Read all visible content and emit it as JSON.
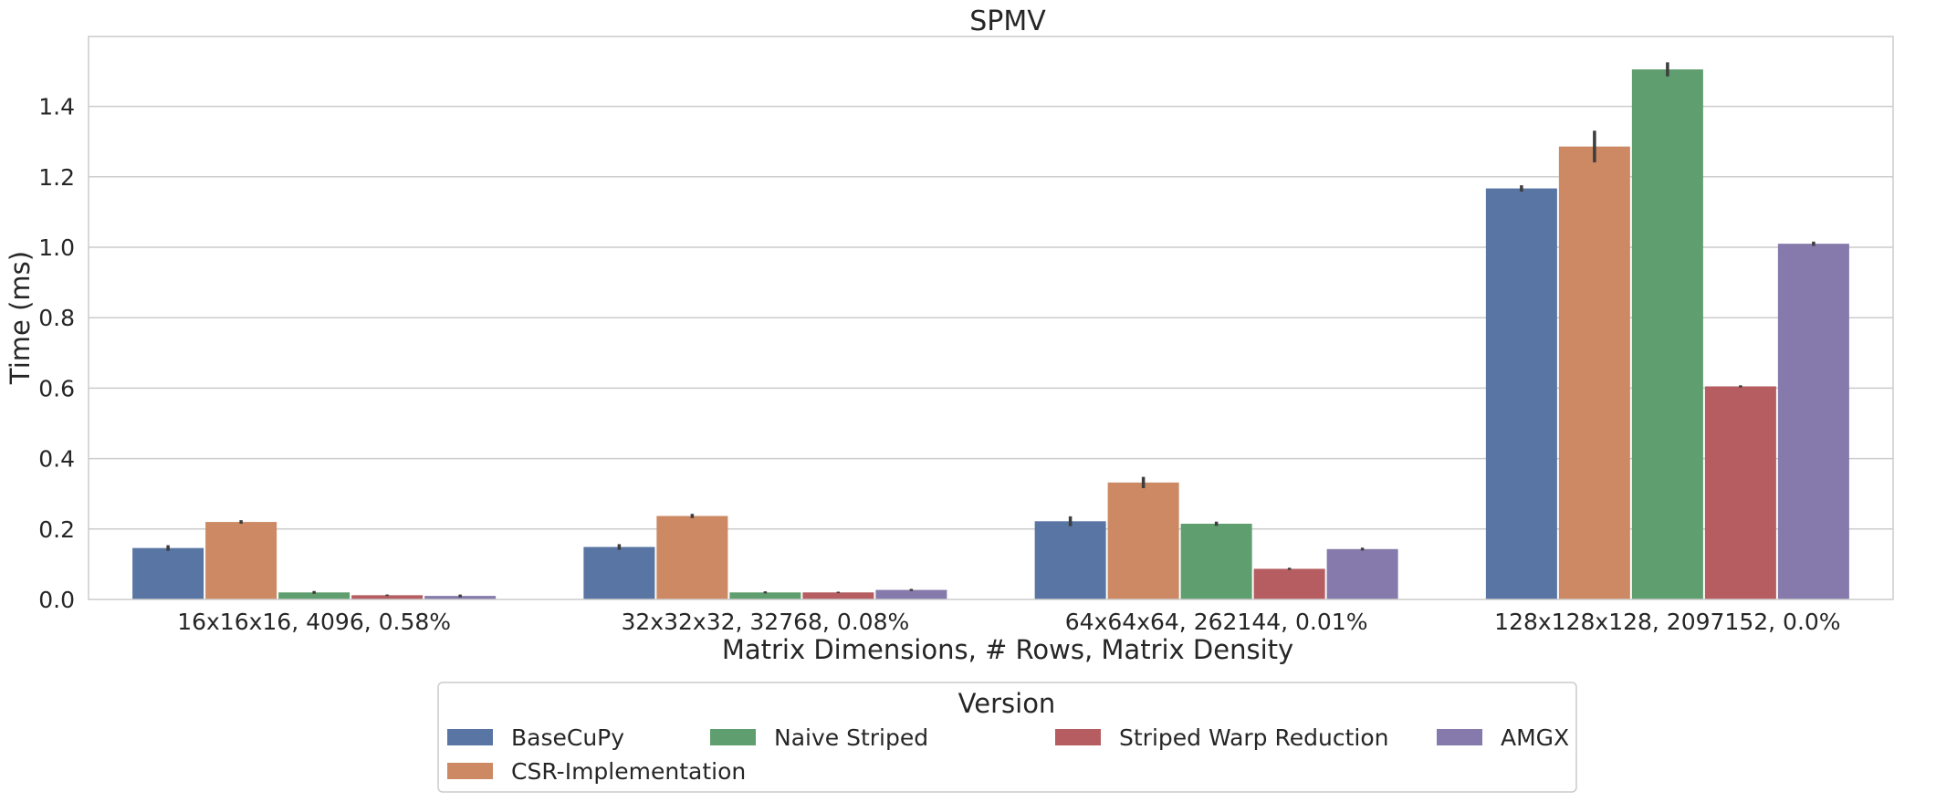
{
  "chart_data": {
    "type": "bar",
    "title": "SPMV",
    "xlabel": "Matrix Dimensions, # Rows, Matrix Density",
    "ylabel": "Time (ms)",
    "ylim": [
      0,
      1.58
    ],
    "yticks": [
      "0.0",
      "0.2",
      "0.4",
      "0.6",
      "0.8",
      "1.0",
      "1.2",
      "1.4"
    ],
    "grid": true,
    "categories": [
      "16x16x16, 4096, 0.58%",
      "32x32x32, 32768, 0.08%",
      "64x64x64, 262144, 0.01%",
      "128x128x128, 2097152, 0.0%"
    ],
    "legend": {
      "title": "Version",
      "position": "bottom-center"
    },
    "series": [
      {
        "name": "BaseCuPy",
        "color": "#5875a4",
        "values": [
          0.146,
          0.149,
          0.222,
          1.167
        ],
        "err": [
          0.008,
          0.008,
          0.014,
          0.009
        ]
      },
      {
        "name": "CSR-Implementation",
        "color": "#cc8963",
        "values": [
          0.22,
          0.237,
          0.332,
          1.286
        ],
        "err": [
          0.005,
          0.006,
          0.016,
          0.045
        ]
      },
      {
        "name": "Naive Striped",
        "color": "#5f9e6e",
        "values": [
          0.02,
          0.02,
          0.215,
          1.505
        ],
        "err": [
          0.004,
          0.003,
          0.006,
          0.02
        ]
      },
      {
        "name": "Striped Warp Reduction",
        "color": "#b55d60",
        "values": [
          0.012,
          0.02,
          0.087,
          0.605
        ],
        "err": [
          0.002,
          0.002,
          0.003,
          0.003
        ]
      },
      {
        "name": "AMGX",
        "color": "#857aab",
        "values": [
          0.01,
          0.027,
          0.143,
          1.01
        ],
        "err": [
          0.004,
          0.003,
          0.004,
          0.006
        ]
      }
    ]
  }
}
